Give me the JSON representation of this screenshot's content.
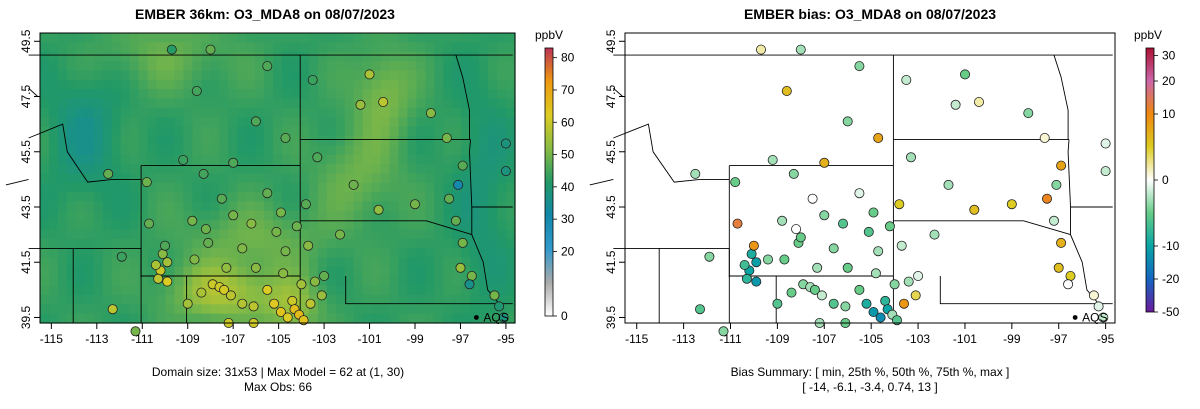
{
  "chart_data": [
    {
      "type": "heatmap",
      "title": "EMBER 36km: O3_MDA8 on 08/07/2023",
      "x_ticks": [
        "-115",
        "-113",
        "-111",
        "-109",
        "-107",
        "-105",
        "-103",
        "-101",
        "-99",
        "-97",
        "-95"
      ],
      "y_ticks": [
        "39.5",
        "41.5",
        "43.5",
        "45.5",
        "47.5",
        "49.5"
      ],
      "xlim": [
        -115.5,
        -94.6
      ],
      "ylim": [
        39.3,
        49.8
      ],
      "colorbar": {
        "label": "ppbV",
        "ticks": [
          "0",
          "20",
          "30",
          "40",
          "50",
          "60",
          "70",
          "80"
        ],
        "colors": [
          "#ffffff",
          "#aaaaaa",
          "#3399cc",
          "#1188aa",
          "#229966",
          "#88bb44",
          "#ddcc22",
          "#ee9911",
          "#bb3355"
        ]
      },
      "point_label": "AQS",
      "footer": [
        "Domain size: 31x53 | Max Model = 62 at (1, 30)",
        "Max Obs: 66"
      ],
      "obs_points": [
        {
          "lon": -109.7,
          "lat": 49.2,
          "v": 42
        },
        {
          "lon": -108.0,
          "lat": 49.2,
          "v": 48
        },
        {
          "lon": -105.5,
          "lat": 48.6,
          "v": 46
        },
        {
          "lon": -103.5,
          "lat": 48.1,
          "v": 44
        },
        {
          "lon": -101.0,
          "lat": 48.3,
          "v": 56
        },
        {
          "lon": -100.4,
          "lat": 47.3,
          "v": 58
        },
        {
          "lon": -101.4,
          "lat": 47.2,
          "v": 54
        },
        {
          "lon": -98.3,
          "lat": 46.9,
          "v": 52
        },
        {
          "lon": -97.6,
          "lat": 46.0,
          "v": 50
        },
        {
          "lon": -96.9,
          "lat": 45.0,
          "v": 47
        },
        {
          "lon": -95.0,
          "lat": 45.8,
          "v": 38
        },
        {
          "lon": -95.0,
          "lat": 44.8,
          "v": 38
        },
        {
          "lon": -112.5,
          "lat": 44.7,
          "v": 48
        },
        {
          "lon": -108.6,
          "lat": 47.7,
          "v": 45
        },
        {
          "lon": -106.0,
          "lat": 46.6,
          "v": 46
        },
        {
          "lon": -104.7,
          "lat": 46.0,
          "v": 47
        },
        {
          "lon": -103.3,
          "lat": 45.3,
          "v": 46
        },
        {
          "lon": -107.0,
          "lat": 45.1,
          "v": 46
        },
        {
          "lon": -109.2,
          "lat": 45.2,
          "v": 44
        },
        {
          "lon": -110.8,
          "lat": 44.4,
          "v": 49
        },
        {
          "lon": -107.5,
          "lat": 43.8,
          "v": 47
        },
        {
          "lon": -105.5,
          "lat": 44.0,
          "v": 48
        },
        {
          "lon": -103.8,
          "lat": 43.6,
          "v": 47
        },
        {
          "lon": -101.7,
          "lat": 44.3,
          "v": 49
        },
        {
          "lon": -100.6,
          "lat": 43.4,
          "v": 53
        },
        {
          "lon": -99.0,
          "lat": 43.6,
          "v": 50
        },
        {
          "lon": -97.5,
          "lat": 43.8,
          "v": 48
        },
        {
          "lon": -97.1,
          "lat": 44.3,
          "v": 30
        },
        {
          "lon": -97.2,
          "lat": 43.0,
          "v": 48
        },
        {
          "lon": -96.9,
          "lat": 42.2,
          "v": 50
        },
        {
          "lon": -97.0,
          "lat": 41.3,
          "v": 54
        },
        {
          "lon": -96.5,
          "lat": 41.0,
          "v": 50
        },
        {
          "lon": -96.6,
          "lat": 40.7,
          "v": 36
        },
        {
          "lon": -95.5,
          "lat": 40.3,
          "v": 50
        },
        {
          "lon": -95.3,
          "lat": 39.9,
          "v": 40
        },
        {
          "lon": -95.1,
          "lat": 39.5,
          "v": 38
        },
        {
          "lon": -102.3,
          "lat": 42.5,
          "v": 50
        },
        {
          "lon": -103.0,
          "lat": 41.0,
          "v": 48
        },
        {
          "lon": -104.9,
          "lat": 43.3,
          "v": 50
        },
        {
          "lon": -106.2,
          "lat": 42.9,
          "v": 52
        },
        {
          "lon": -107.0,
          "lat": 43.2,
          "v": 50
        },
        {
          "lon": -108.8,
          "lat": 43.0,
          "v": 50
        },
        {
          "lon": -108.2,
          "lat": 42.7,
          "v": 49
        },
        {
          "lon": -108.1,
          "lat": 42.2,
          "v": 48
        },
        {
          "lon": -106.6,
          "lat": 42.0,
          "v": 51
        },
        {
          "lon": -105.1,
          "lat": 42.6,
          "v": 50
        },
        {
          "lon": -104.2,
          "lat": 42.8,
          "v": 49
        },
        {
          "lon": -108.7,
          "lat": 41.6,
          "v": 51
        },
        {
          "lon": -107.3,
          "lat": 41.3,
          "v": 53
        },
        {
          "lon": -106.0,
          "lat": 41.3,
          "v": 52
        },
        {
          "lon": -104.8,
          "lat": 41.1,
          "v": 52
        },
        {
          "lon": -110.1,
          "lat": 41.8,
          "v": 52
        },
        {
          "lon": -111.9,
          "lat": 41.7,
          "v": 44
        },
        {
          "lon": -110.0,
          "lat": 42.1,
          "v": 46
        },
        {
          "lon": -110.2,
          "lat": 41.2,
          "v": 60
        },
        {
          "lon": -110.3,
          "lat": 40.9,
          "v": 58
        },
        {
          "lon": -109.9,
          "lat": 40.8,
          "v": 62
        },
        {
          "lon": -110.4,
          "lat": 41.4,
          "v": 56
        },
        {
          "lon": -109.9,
          "lat": 41.5,
          "v": 55
        },
        {
          "lon": -107.9,
          "lat": 40.7,
          "v": 60
        },
        {
          "lon": -107.6,
          "lat": 40.6,
          "v": 60
        },
        {
          "lon": -107.4,
          "lat": 40.5,
          "v": 61
        },
        {
          "lon": -107.1,
          "lat": 40.3,
          "v": 58
        },
        {
          "lon": -108.4,
          "lat": 40.4,
          "v": 56
        },
        {
          "lon": -109.0,
          "lat": 40.0,
          "v": 55
        },
        {
          "lon": -106.6,
          "lat": 40.0,
          "v": 57
        },
        {
          "lon": -106.1,
          "lat": 39.9,
          "v": 58
        },
        {
          "lon": -105.5,
          "lat": 40.5,
          "v": 62
        },
        {
          "lon": -105.2,
          "lat": 40.0,
          "v": 63
        },
        {
          "lon": -104.9,
          "lat": 39.7,
          "v": 64
        },
        {
          "lon": -104.6,
          "lat": 39.5,
          "v": 62
        },
        {
          "lon": -104.4,
          "lat": 40.1,
          "v": 60
        },
        {
          "lon": -104.3,
          "lat": 39.8,
          "v": 65
        },
        {
          "lon": -104.1,
          "lat": 39.6,
          "v": 66
        },
        {
          "lon": -103.9,
          "lat": 39.4,
          "v": 64
        },
        {
          "lon": -103.6,
          "lat": 40.0,
          "v": 58
        },
        {
          "lon": -104.0,
          "lat": 40.7,
          "v": 55
        },
        {
          "lon": -103.4,
          "lat": 40.8,
          "v": 52
        },
        {
          "lon": -103.1,
          "lat": 40.3,
          "v": 54
        },
        {
          "lon": -104.7,
          "lat": 41.9,
          "v": 50
        },
        {
          "lon": -103.7,
          "lat": 42.1,
          "v": 52
        },
        {
          "lon": -106.1,
          "lat": 39.3,
          "v": 60
        },
        {
          "lon": -107.2,
          "lat": 39.3,
          "v": 60
        },
        {
          "lon": -112.3,
          "lat": 39.8,
          "v": 58
        },
        {
          "lon": -111.3,
          "lat": 39.0,
          "v": 50
        },
        {
          "lon": -110.7,
          "lat": 42.9,
          "v": 48
        },
        {
          "lon": -108.3,
          "lat": 44.7,
          "v": 45
        }
      ]
    },
    {
      "type": "scatter",
      "title": "EMBER bias: O3_MDA8 on 08/07/2023",
      "x_ticks": [
        "-115",
        "-113",
        "-111",
        "-109",
        "-107",
        "-105",
        "-103",
        "-101",
        "-99",
        "-97",
        "-95"
      ],
      "y_ticks": [
        "39.5",
        "41.5",
        "43.5",
        "45.5",
        "47.5",
        "49.5"
      ],
      "xlim": [
        -115.5,
        -94.6
      ],
      "ylim": [
        39.3,
        49.8
      ],
      "colorbar": {
        "label": "ppbV",
        "ticks": [
          "-50",
          "-20",
          "-10",
          "0",
          "10",
          "20",
          "30"
        ],
        "colors": [
          "#6a1b9a",
          "#1565c0",
          "#0aa5a5",
          "#66cc88",
          "#ffffff",
          "#ddcc22",
          "#ee8811",
          "#cc66aa",
          "#aa1133"
        ]
      },
      "point_label": "AQS",
      "footer": [
        "Bias Summary: [ min, 25th %, 50th %, 75th %, max ]",
        "[ -14,   -6.1,   -3.4,   0.74,   13 ]"
      ],
      "bias_points": [
        {
          "lon": -109.7,
          "lat": 49.2,
          "v": 2
        },
        {
          "lon": -108.0,
          "lat": 49.2,
          "v": -3
        },
        {
          "lon": -105.5,
          "lat": 48.6,
          "v": -4
        },
        {
          "lon": -103.5,
          "lat": 48.1,
          "v": -2
        },
        {
          "lon": -101.0,
          "lat": 48.3,
          "v": -5
        },
        {
          "lon": -100.4,
          "lat": 47.3,
          "v": 2
        },
        {
          "lon": -101.4,
          "lat": 47.2,
          "v": -2
        },
        {
          "lon": -98.3,
          "lat": 46.9,
          "v": -4
        },
        {
          "lon": -97.6,
          "lat": 46.0,
          "v": 1
        },
        {
          "lon": -96.9,
          "lat": 45.0,
          "v": 8
        },
        {
          "lon": -95.0,
          "lat": 45.8,
          "v": -1
        },
        {
          "lon": -95.0,
          "lat": 44.8,
          "v": -2
        },
        {
          "lon": -112.5,
          "lat": 44.7,
          "v": -3
        },
        {
          "lon": -108.6,
          "lat": 47.7,
          "v": 6
        },
        {
          "lon": -106.0,
          "lat": 46.6,
          "v": -4
        },
        {
          "lon": -104.7,
          "lat": 46.0,
          "v": 8
        },
        {
          "lon": -103.3,
          "lat": 45.3,
          "v": -3
        },
        {
          "lon": -107.0,
          "lat": 45.1,
          "v": 7
        },
        {
          "lon": -109.2,
          "lat": 45.2,
          "v": -3
        },
        {
          "lon": -110.8,
          "lat": 44.4,
          "v": -5
        },
        {
          "lon": -107.5,
          "lat": 43.8,
          "v": 0
        },
        {
          "lon": -105.5,
          "lat": 44.0,
          "v": -1
        },
        {
          "lon": -103.8,
          "lat": 43.6,
          "v": 5
        },
        {
          "lon": -101.7,
          "lat": 44.3,
          "v": -3
        },
        {
          "lon": -100.6,
          "lat": 43.4,
          "v": 6
        },
        {
          "lon": -99.0,
          "lat": 43.6,
          "v": 5
        },
        {
          "lon": -97.5,
          "lat": 43.8,
          "v": 11
        },
        {
          "lon": -97.1,
          "lat": 44.3,
          "v": -4
        },
        {
          "lon": -97.2,
          "lat": 43.0,
          "v": -2
        },
        {
          "lon": -96.9,
          "lat": 42.2,
          "v": 7
        },
        {
          "lon": -97.0,
          "lat": 41.3,
          "v": 6
        },
        {
          "lon": -96.5,
          "lat": 41.0,
          "v": 5
        },
        {
          "lon": -96.6,
          "lat": 40.7,
          "v": 0
        },
        {
          "lon": -95.5,
          "lat": 40.3,
          "v": 1
        },
        {
          "lon": -95.3,
          "lat": 39.9,
          "v": -1
        },
        {
          "lon": -95.1,
          "lat": 39.5,
          "v": -2
        },
        {
          "lon": -102.3,
          "lat": 42.5,
          "v": -3
        },
        {
          "lon": -103.0,
          "lat": 41.0,
          "v": -1
        },
        {
          "lon": -104.9,
          "lat": 43.3,
          "v": -5
        },
        {
          "lon": -106.2,
          "lat": 42.9,
          "v": -6
        },
        {
          "lon": -107.0,
          "lat": 43.2,
          "v": -4
        },
        {
          "lon": -108.8,
          "lat": 43.0,
          "v": -3
        },
        {
          "lon": -108.2,
          "lat": 42.7,
          "v": 0
        },
        {
          "lon": -108.1,
          "lat": 42.2,
          "v": -5
        },
        {
          "lon": -106.6,
          "lat": 42.0,
          "v": -4
        },
        {
          "lon": -105.1,
          "lat": 42.6,
          "v": -6
        },
        {
          "lon": -104.2,
          "lat": 42.8,
          "v": -5
        },
        {
          "lon": -108.7,
          "lat": 41.6,
          "v": -5
        },
        {
          "lon": -107.3,
          "lat": 41.3,
          "v": -3
        },
        {
          "lon": -106.0,
          "lat": 41.3,
          "v": -5
        },
        {
          "lon": -104.8,
          "lat": 41.1,
          "v": -3
        },
        {
          "lon": -110.1,
          "lat": 41.8,
          "v": -9
        },
        {
          "lon": -111.9,
          "lat": 41.7,
          "v": -4
        },
        {
          "lon": -110.0,
          "lat": 42.1,
          "v": 9
        },
        {
          "lon": -110.2,
          "lat": 41.2,
          "v": -10
        },
        {
          "lon": -110.3,
          "lat": 40.9,
          "v": -8
        },
        {
          "lon": -109.9,
          "lat": 40.8,
          "v": -12
        },
        {
          "lon": -110.4,
          "lat": 41.4,
          "v": -7
        },
        {
          "lon": -109.9,
          "lat": 41.5,
          "v": -11
        },
        {
          "lon": -107.9,
          "lat": 40.7,
          "v": -4
        },
        {
          "lon": -107.6,
          "lat": 40.6,
          "v": -3
        },
        {
          "lon": -107.4,
          "lat": 40.5,
          "v": -5
        },
        {
          "lon": -107.1,
          "lat": 40.3,
          "v": -2
        },
        {
          "lon": -108.4,
          "lat": 40.4,
          "v": -5
        },
        {
          "lon": -109.0,
          "lat": 40.0,
          "v": -6
        },
        {
          "lon": -106.6,
          "lat": 40.0,
          "v": -6
        },
        {
          "lon": -106.1,
          "lat": 39.9,
          "v": -4
        },
        {
          "lon": -105.5,
          "lat": 40.5,
          "v": -5
        },
        {
          "lon": -105.2,
          "lat": 40.0,
          "v": -9
        },
        {
          "lon": -104.9,
          "lat": 39.7,
          "v": -12
        },
        {
          "lon": -104.6,
          "lat": 39.5,
          "v": -14
        },
        {
          "lon": -104.4,
          "lat": 40.1,
          "v": -8
        },
        {
          "lon": -104.3,
          "lat": 39.8,
          "v": -10
        },
        {
          "lon": -104.1,
          "lat": 39.6,
          "v": -3
        },
        {
          "lon": -103.9,
          "lat": 39.4,
          "v": -6
        },
        {
          "lon": -103.6,
          "lat": 40.0,
          "v": 9
        },
        {
          "lon": -104.0,
          "lat": 40.7,
          "v": -4
        },
        {
          "lon": -103.4,
          "lat": 40.8,
          "v": -3
        },
        {
          "lon": -103.1,
          "lat": 40.3,
          "v": 4
        },
        {
          "lon": -104.7,
          "lat": 41.9,
          "v": -3
        },
        {
          "lon": -103.7,
          "lat": 42.1,
          "v": -2
        },
        {
          "lon": -106.1,
          "lat": 39.3,
          "v": -5
        },
        {
          "lon": -107.2,
          "lat": 39.3,
          "v": -3
        },
        {
          "lon": -112.3,
          "lat": 39.8,
          "v": -6
        },
        {
          "lon": -111.3,
          "lat": 39.0,
          "v": -4
        },
        {
          "lon": -110.7,
          "lat": 42.9,
          "v": 13
        },
        {
          "lon": -108.3,
          "lat": 44.7,
          "v": -4
        },
        {
          "lon": -108.0,
          "lat": 42.4,
          "v": -5
        },
        {
          "lon": -109.4,
          "lat": 41.6,
          "v": -4
        }
      ]
    }
  ]
}
